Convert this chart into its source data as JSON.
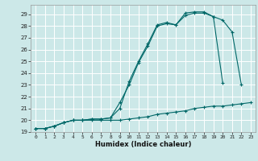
{
  "xlabel": "Humidex (Indice chaleur)",
  "bg_color": "#cce8e8",
  "grid_color": "#ffffff",
  "line_color": "#006868",
  "xlim": [
    -0.5,
    23.5
  ],
  "ylim": [
    19.0,
    29.8
  ],
  "xticks": [
    0,
    1,
    2,
    3,
    4,
    5,
    6,
    7,
    8,
    9,
    10,
    11,
    12,
    13,
    14,
    15,
    16,
    17,
    18,
    19,
    20,
    21,
    22,
    23
  ],
  "yticks": [
    19,
    20,
    21,
    22,
    23,
    24,
    25,
    26,
    27,
    28,
    29
  ],
  "series1_x": [
    0,
    1,
    2,
    3,
    4,
    5,
    6,
    7,
    8,
    9,
    10,
    11,
    12,
    13,
    14,
    15,
    16,
    17,
    18,
    19,
    20,
    21,
    22,
    23
  ],
  "series1_y": [
    19.3,
    19.3,
    19.5,
    19.8,
    20.0,
    20.0,
    20.0,
    20.0,
    20.0,
    20.0,
    20.1,
    20.2,
    20.3,
    20.5,
    20.6,
    20.7,
    20.8,
    21.0,
    21.1,
    21.2,
    21.2,
    21.3,
    21.4,
    21.5
  ],
  "series2_x": [
    0,
    1,
    2,
    3,
    4,
    5,
    6,
    7,
    8,
    9,
    10,
    11,
    12,
    13,
    14,
    15,
    16,
    17,
    18,
    19,
    20,
    21,
    22
  ],
  "series2_y": [
    19.3,
    19.3,
    19.5,
    19.8,
    20.0,
    20.0,
    20.1,
    20.1,
    20.2,
    21.5,
    23.0,
    24.9,
    26.3,
    28.0,
    28.2,
    28.1,
    28.9,
    29.1,
    29.1,
    28.8,
    28.5,
    27.5,
    23.0
  ],
  "series3_x": [
    0,
    1,
    2,
    3,
    4,
    5,
    6,
    7,
    8,
    9,
    10,
    11,
    12,
    13,
    14,
    15,
    16,
    17,
    18,
    19,
    20
  ],
  "series3_y": [
    19.3,
    19.3,
    19.5,
    19.8,
    20.0,
    20.0,
    20.1,
    20.1,
    20.2,
    21.0,
    23.3,
    25.0,
    26.5,
    28.1,
    28.3,
    28.1,
    29.1,
    29.2,
    29.2,
    28.8,
    23.2
  ]
}
